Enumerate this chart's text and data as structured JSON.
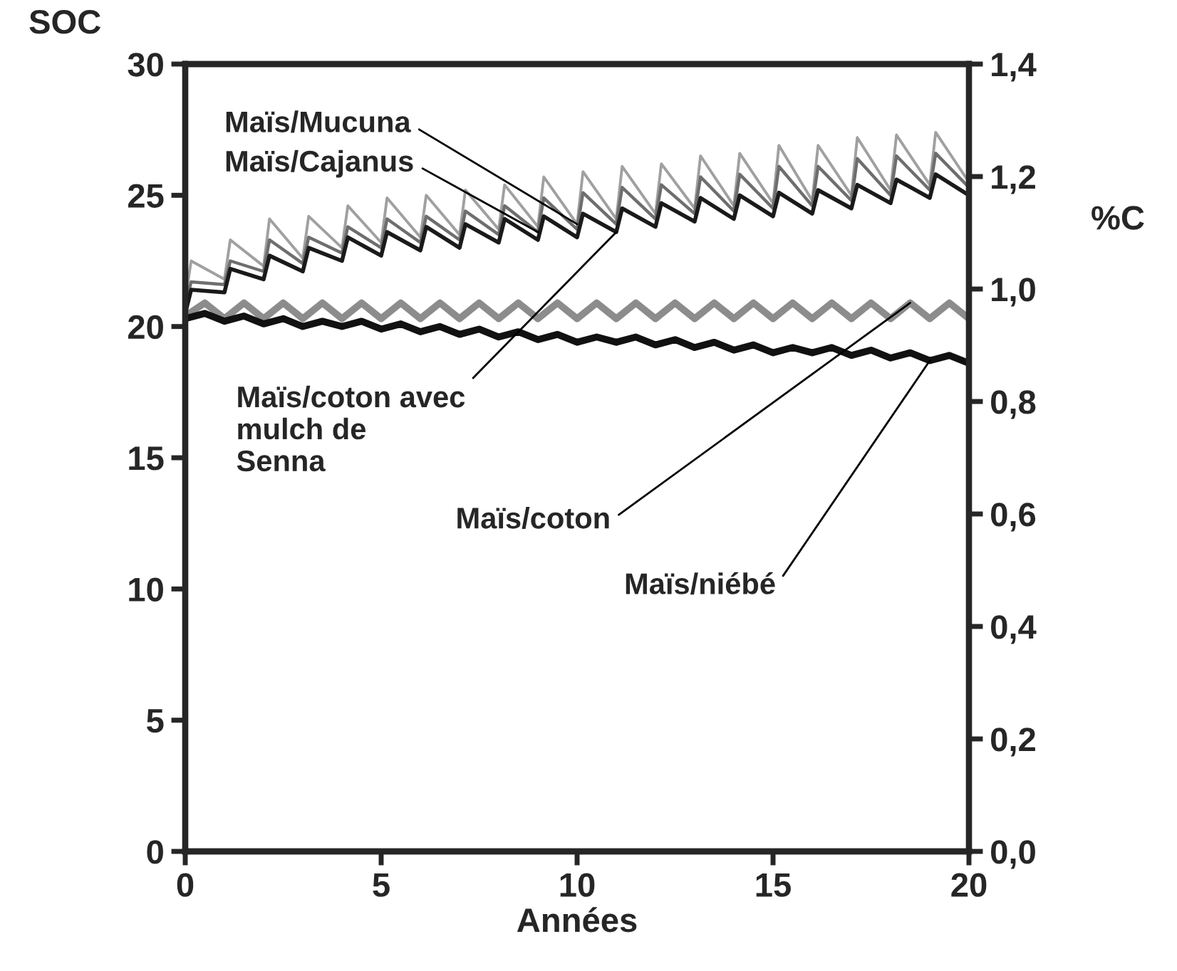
{
  "chart_data": {
    "type": "line",
    "xlabel": "Années",
    "ylabel": "SOC",
    "y2label": "%C",
    "xlim": [
      0,
      20
    ],
    "xticks": [
      0,
      5,
      10,
      15,
      20
    ],
    "ylim": [
      0,
      30
    ],
    "yticks": [
      0,
      5,
      10,
      15,
      20,
      25,
      30
    ],
    "y2lim": [
      0,
      1.4
    ],
    "y2ticks": [
      {
        "value": 0,
        "label": "0,0"
      },
      {
        "value": 0.2,
        "label": "0,2"
      },
      {
        "value": 0.4,
        "label": "0,4"
      },
      {
        "value": 0.6,
        "label": "0,6"
      },
      {
        "value": 0.8,
        "label": "0,8"
      },
      {
        "value": 1.0,
        "label": "1,0"
      },
      {
        "value": 1.2,
        "label": "1,2"
      },
      {
        "value": 1.4,
        "label": "1,4"
      }
    ],
    "grid": false,
    "legend": false,
    "marker": "none",
    "line_style": "solid",
    "series": [
      {
        "name": "Maïs/Mucuna",
        "color": "#a0a0a0",
        "x": [
          0,
          0.15,
          1,
          1.15,
          2,
          2.15,
          3,
          3.15,
          4,
          4.15,
          5,
          5.15,
          6,
          6.15,
          7,
          7.15,
          8,
          8.15,
          9,
          9.15,
          10,
          10.15,
          11,
          11.15,
          12,
          12.15,
          13,
          13.15,
          14,
          14.15,
          15,
          15.15,
          16,
          16.15,
          17,
          17.15,
          18,
          18.15,
          19,
          19.15,
          20
        ],
        "values": [
          21.0,
          22.5,
          21.8,
          23.3,
          22.3,
          24.1,
          22.6,
          24.2,
          23.0,
          24.6,
          23.2,
          24.9,
          23.4,
          25.0,
          23.5,
          25.2,
          23.7,
          25.4,
          23.8,
          25.7,
          23.9,
          25.9,
          24.1,
          26.1,
          24.3,
          26.2,
          24.5,
          26.5,
          24.6,
          26.6,
          24.7,
          26.9,
          24.8,
          26.9,
          25.0,
          27.2,
          25.2,
          27.3,
          25.4,
          27.4,
          25.5
        ]
      },
      {
        "name": "Maïs/Cajanus",
        "color": "#6e6e6e",
        "x": [
          0,
          0.15,
          1,
          1.15,
          2,
          2.15,
          3,
          3.15,
          4,
          4.15,
          5,
          5.15,
          6,
          6.15,
          7,
          7.15,
          8,
          8.15,
          9,
          9.15,
          10,
          10.15,
          11,
          11.15,
          12,
          12.15,
          13,
          13.15,
          14,
          14.15,
          15,
          15.15,
          16,
          16.15,
          17,
          17.15,
          18,
          18.15,
          19,
          19.15,
          20
        ],
        "values": [
          20.8,
          21.7,
          21.6,
          22.5,
          22.1,
          23.3,
          22.4,
          23.4,
          22.8,
          23.8,
          23.0,
          24.1,
          23.2,
          24.2,
          23.3,
          24.4,
          23.5,
          24.6,
          23.6,
          24.9,
          23.7,
          25.1,
          23.9,
          25.3,
          24.1,
          25.4,
          24.3,
          25.7,
          24.4,
          25.8,
          24.5,
          26.1,
          24.6,
          26.1,
          24.8,
          26.4,
          25.0,
          26.5,
          25.2,
          26.6,
          25.3
        ]
      },
      {
        "name": "Maïs/coton avec\nmulch de\nSenna",
        "color": "#1a1a1a",
        "x": [
          0,
          0.15,
          1,
          1.15,
          2,
          2.15,
          3,
          3.15,
          4,
          4.15,
          5,
          5.15,
          6,
          6.15,
          7,
          7.15,
          8,
          8.15,
          9,
          9.15,
          10,
          10.15,
          11,
          11.15,
          12,
          12.15,
          13,
          13.15,
          14,
          14.15,
          15,
          15.15,
          16,
          16.15,
          17,
          17.15,
          18,
          18.15,
          19,
          19.15,
          20
        ],
        "values": [
          20.5,
          21.4,
          21.3,
          22.2,
          21.8,
          22.7,
          22.1,
          23.0,
          22.5,
          23.4,
          22.7,
          23.6,
          22.9,
          23.8,
          23.0,
          23.9,
          23.2,
          24.1,
          23.3,
          24.2,
          23.4,
          24.3,
          23.6,
          24.5,
          23.8,
          24.7,
          24.0,
          24.9,
          24.1,
          25.0,
          24.2,
          25.1,
          24.3,
          25.2,
          24.5,
          25.4,
          24.7,
          25.6,
          24.9,
          25.8,
          25.0
        ]
      },
      {
        "name": "Maïs/coton",
        "color": "#8c8c8c",
        "x": [
          0,
          0.5,
          1,
          1.5,
          2,
          2.5,
          3,
          3.5,
          4,
          4.5,
          5,
          5.5,
          6,
          6.5,
          7,
          7.5,
          8,
          8.5,
          9,
          9.5,
          10,
          10.5,
          11,
          11.5,
          12,
          12.5,
          13,
          13.5,
          14,
          14.5,
          15,
          15.5,
          16,
          16.5,
          17,
          17.5,
          18,
          18.5,
          19,
          19.5,
          20
        ],
        "values": [
          20.4,
          20.9,
          20.3,
          20.9,
          20.3,
          20.9,
          20.3,
          20.9,
          20.3,
          20.9,
          20.3,
          20.9,
          20.3,
          20.9,
          20.3,
          20.9,
          20.3,
          20.9,
          20.3,
          20.9,
          20.3,
          20.9,
          20.3,
          20.9,
          20.3,
          20.9,
          20.3,
          20.9,
          20.3,
          20.9,
          20.3,
          20.9,
          20.3,
          20.9,
          20.3,
          20.9,
          20.3,
          20.9,
          20.3,
          20.9,
          20.3
        ]
      },
      {
        "name": "Maïs/niébé",
        "color": "#111111",
        "x": [
          0,
          0.5,
          1,
          1.5,
          2,
          2.5,
          3,
          3.5,
          4,
          4.5,
          5,
          5.5,
          6,
          6.5,
          7,
          7.5,
          8,
          8.5,
          9,
          9.5,
          10,
          10.5,
          11,
          11.5,
          12,
          12.5,
          13,
          13.5,
          14,
          14.5,
          15,
          15.5,
          16,
          16.5,
          17,
          17.5,
          18,
          18.5,
          19,
          19.5,
          20
        ],
        "values": [
          20.3,
          20.5,
          20.2,
          20.4,
          20.1,
          20.3,
          20.0,
          20.2,
          20.0,
          20.2,
          19.9,
          20.1,
          19.8,
          20.0,
          19.7,
          19.9,
          19.6,
          19.8,
          19.5,
          19.7,
          19.4,
          19.6,
          19.4,
          19.6,
          19.3,
          19.5,
          19.2,
          19.4,
          19.1,
          19.3,
          19.0,
          19.2,
          19.0,
          19.2,
          18.9,
          19.1,
          18.8,
          19.0,
          18.7,
          18.9,
          18.6
        ]
      }
    ]
  }
}
